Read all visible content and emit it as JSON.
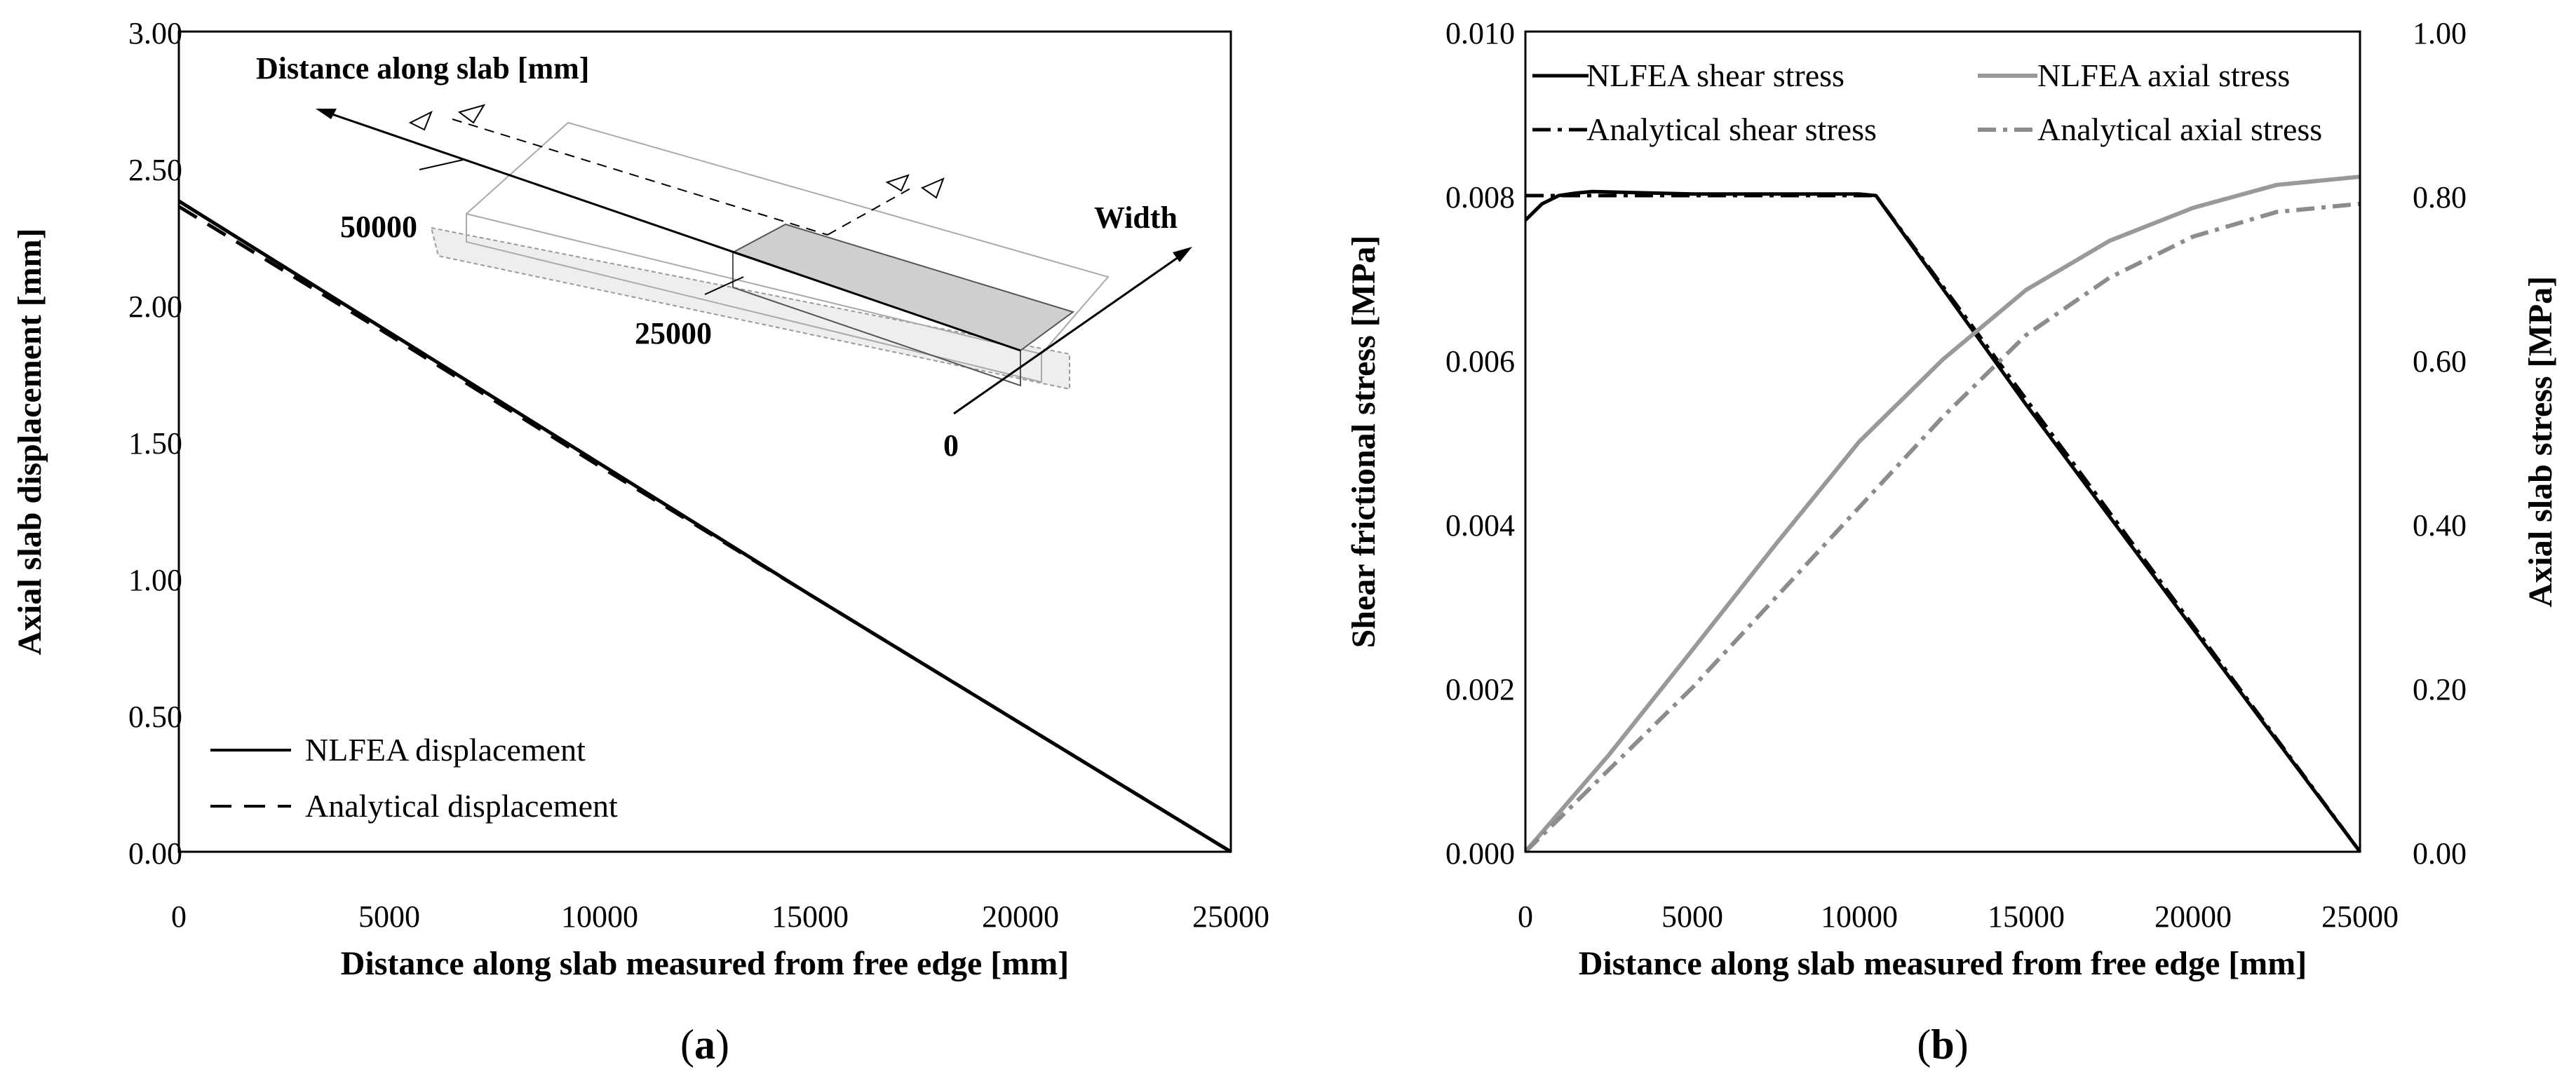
{
  "chart_data": [
    {
      "panel": "a",
      "type": "line",
      "caption": "(a)",
      "caption_letter": "a",
      "xlabel": "Distance along slab measured from free edge [mm]",
      "ylabel": "Axial slab displacement [mm]",
      "xlim": [
        0,
        25000
      ],
      "ylim": [
        0,
        3.0
      ],
      "xticks": [
        "0",
        "5000",
        "10000",
        "15000",
        "20000",
        "25000"
      ],
      "yticks": [
        "0.00",
        "0.50",
        "1.00",
        "1.50",
        "2.00",
        "2.50",
        "3.00"
      ],
      "legend_position": "bottom-left",
      "series": [
        {
          "name": "NLFEA displacement",
          "style": "solid",
          "color": "#000000",
          "x": [
            0,
            5000,
            10000,
            15000,
            20000,
            25000
          ],
          "y": [
            2.38,
            1.9,
            1.42,
            0.94,
            0.47,
            0.0
          ]
        },
        {
          "name": "Analytical displacement",
          "style": "dashed",
          "color": "#000000",
          "x": [
            0,
            5000,
            10000,
            15000,
            20000,
            25000
          ],
          "y": [
            2.36,
            1.89,
            1.41,
            0.94,
            0.47,
            0.0
          ]
        }
      ],
      "inset": {
        "axis_label": "Distance along slab [mm]",
        "width_label": "Width",
        "marks": [
          "50000",
          "25000",
          "0"
        ]
      }
    },
    {
      "panel": "b",
      "type": "line",
      "caption": "(b)",
      "caption_letter": "b",
      "xlabel": "Distance along slab measured from free edge [mm]",
      "ylabel": "Shear frictional stress [MPa]",
      "ylabel_right": "Axial slab stress [MPa]",
      "xlim": [
        0,
        25000
      ],
      "ylim": [
        0,
        0.01
      ],
      "ylim_right": [
        0,
        1.0
      ],
      "xticks": [
        "0",
        "5000",
        "10000",
        "15000",
        "20000",
        "25000"
      ],
      "yticks": [
        "0.000",
        "0.002",
        "0.004",
        "0.006",
        "0.008",
        "0.010"
      ],
      "yticks_right": [
        "0.00",
        "0.20",
        "0.40",
        "0.60",
        "0.80",
        "1.00"
      ],
      "legend_position": "top",
      "series": [
        {
          "name": "NLFEA shear stress",
          "style": "solid",
          "color": "#000000",
          "axis": "left",
          "x": [
            0,
            500,
            1000,
            1500,
            2000,
            5000,
            10000,
            10500,
            15000,
            20000,
            25000
          ],
          "y": [
            0.0077,
            0.0079,
            0.008,
            0.00803,
            0.00805,
            0.00802,
            0.00802,
            0.008,
            0.00545,
            0.00272,
            0.0
          ]
        },
        {
          "name": "Analytical shear stress",
          "style": "dashdot",
          "color": "#000000",
          "axis": "left",
          "x": [
            0,
            2000,
            10500,
            25000
          ],
          "y": [
            0.008,
            0.008,
            0.008,
            0.0
          ]
        },
        {
          "name": "NLFEA axial stress",
          "style": "solid",
          "color": "#999999",
          "axis": "right",
          "x": [
            0,
            2500,
            5000,
            7500,
            10000,
            12500,
            15000,
            17500,
            20000,
            22500,
            25000
          ],
          "y": [
            0.0,
            0.118,
            0.246,
            0.375,
            0.5,
            0.6,
            0.685,
            0.745,
            0.785,
            0.813,
            0.823
          ]
        },
        {
          "name": "Analytical axial stress",
          "style": "dashdot",
          "color": "#8c8c8c",
          "axis": "right",
          "x": [
            0,
            2500,
            5000,
            7500,
            10000,
            12500,
            15000,
            17500,
            20000,
            22500,
            25000
          ],
          "y": [
            0.0,
            0.1,
            0.2,
            0.31,
            0.42,
            0.53,
            0.63,
            0.7,
            0.75,
            0.78,
            0.79
          ]
        }
      ]
    }
  ]
}
